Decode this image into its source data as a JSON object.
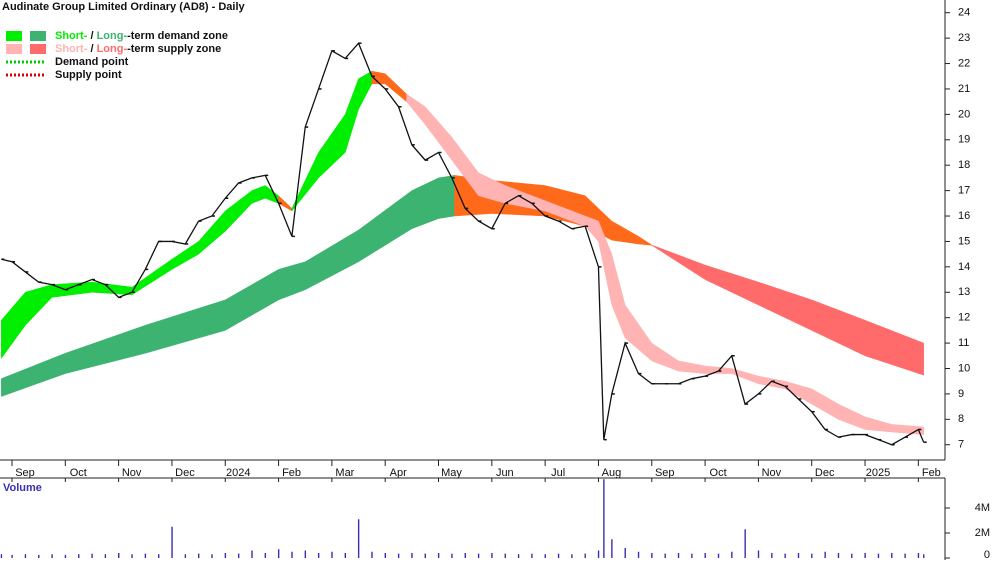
{
  "chart_data": {
    "type": "line",
    "title": "Audinate Group Limited Ordinary (AD8) - Daily",
    "legend": [
      {
        "parts": [
          "Short-",
          " / ",
          "Long-",
          "-term demand zone"
        ],
        "colors": [
          "#00ee00",
          "#3cb371"
        ]
      },
      {
        "parts": [
          "Short-",
          " / ",
          "Long-",
          "-term supply zone"
        ],
        "colors": [
          "#ffb3b3",
          "#ff6b6b"
        ]
      },
      {
        "label": "Demand point",
        "color": "#00cc00"
      },
      {
        "label": "Supply point",
        "color": "#dd0000"
      }
    ],
    "xlim": [
      0.775,
      18.5
    ],
    "xticks": [
      {
        "value": 1,
        "label": "Sep"
      },
      {
        "value": 2,
        "label": "Oct"
      },
      {
        "value": 3,
        "label": "Nov"
      },
      {
        "value": 4,
        "label": "Dec"
      },
      {
        "value": 5,
        "label": "2024"
      },
      {
        "value": 6,
        "label": "Feb"
      },
      {
        "value": 7,
        "label": "Mar"
      },
      {
        "value": 8,
        "label": "Apr"
      },
      {
        "value": 9,
        "label": "May"
      },
      {
        "value": 10,
        "label": "Jun"
      },
      {
        "value": 11,
        "label": "Jul"
      },
      {
        "value": 12,
        "label": "Aug"
      },
      {
        "value": 13,
        "label": "Sep"
      },
      {
        "value": 14,
        "label": "Oct"
      },
      {
        "value": 15,
        "label": "Nov"
      },
      {
        "value": 16,
        "label": "Dec"
      },
      {
        "value": 17,
        "label": "2025"
      },
      {
        "value": 18,
        "label": "Feb"
      }
    ],
    "ylim": [
      6.4,
      24.5
    ],
    "yticks": [
      7,
      8,
      9,
      10,
      11,
      12,
      13,
      14,
      15,
      16,
      17,
      18,
      19,
      20,
      21,
      22,
      23,
      24
    ],
    "x": [
      0.8,
      1.0,
      1.25,
      1.5,
      1.75,
      2.0,
      2.25,
      2.5,
      2.75,
      3.0,
      3.25,
      3.5,
      3.75,
      4.0,
      4.25,
      4.5,
      4.75,
      5.0,
      5.25,
      5.5,
      5.75,
      6.0,
      6.25,
      6.5,
      6.75,
      7.0,
      7.25,
      7.5,
      7.75,
      8.0,
      8.25,
      8.5,
      8.75,
      9.0,
      9.25,
      9.5,
      9.75,
      10.0,
      10.25,
      10.5,
      10.75,
      11.0,
      11.25,
      11.5,
      11.75,
      12.0,
      12.1,
      12.25,
      12.5,
      12.75,
      13.0,
      13.25,
      13.5,
      13.75,
      14.0,
      14.25,
      14.5,
      14.75,
      15.0,
      15.25,
      15.5,
      15.75,
      16.0,
      16.25,
      16.5,
      16.75,
      17.0,
      17.25,
      17.5,
      17.75,
      18.0,
      18.1
    ],
    "price": {
      "color": "#111111",
      "values": [
        14.3,
        14.2,
        13.8,
        13.4,
        13.3,
        13.1,
        13.3,
        13.5,
        13.3,
        12.8,
        13.0,
        13.9,
        15.0,
        15.0,
        14.9,
        15.8,
        16.0,
        16.7,
        17.3,
        17.5,
        17.6,
        16.5,
        15.2,
        19.5,
        21.0,
        22.5,
        22.2,
        22.8,
        21.5,
        21.0,
        20.3,
        18.8,
        18.2,
        18.5,
        17.5,
        16.3,
        15.8,
        15.5,
        16.5,
        16.8,
        16.5,
        16.0,
        15.8,
        15.5,
        15.6,
        14.0,
        7.2,
        9.0,
        11.0,
        9.8,
        9.4,
        9.4,
        9.4,
        9.6,
        9.7,
        9.9,
        10.5,
        8.6,
        9.0,
        9.5,
        9.3,
        8.8,
        8.3,
        7.6,
        7.3,
        7.4,
        7.4,
        7.2,
        7.0,
        7.3,
        7.6,
        7.1
      ]
    },
    "zones": [
      {
        "color": "#3cb371",
        "x": [
          0.8,
          2.0,
          3.5,
          5.0,
          6.0,
          6.5,
          7.5,
          8.5,
          9.0,
          9.3
        ],
        "upper": [
          9.6,
          10.6,
          11.7,
          12.7,
          13.9,
          14.2,
          15.45,
          17.0,
          17.5,
          17.6
        ],
        "lower": [
          8.9,
          9.8,
          10.6,
          11.5,
          12.7,
          13.1,
          14.2,
          15.5,
          15.9,
          16.0
        ]
      },
      {
        "color": "#ff6a1a",
        "x": [
          9.3,
          10.0,
          11.0,
          11.75,
          12.25,
          12.75,
          13.0
        ],
        "upper": [
          17.6,
          17.4,
          17.2,
          16.8,
          15.8,
          15.2,
          14.86
        ],
        "lower": [
          16.0,
          16.1,
          16.0,
          15.6,
          15.05,
          14.9,
          14.85
        ]
      },
      {
        "color": "#ff6b6b",
        "x": [
          13.0,
          14.0,
          15.0,
          16.0,
          17.0,
          18.1
        ],
        "upper": [
          14.86,
          14.07,
          13.4,
          12.7,
          11.9,
          11.0
        ],
        "lower": [
          14.85,
          13.5,
          12.5,
          11.5,
          10.5,
          9.74
        ]
      },
      {
        "color": "#00ee00",
        "x": [
          0.8,
          1.25,
          1.75,
          2.5,
          3.25,
          4.0,
          4.5,
          5.0,
          5.5,
          5.75,
          6.0
        ],
        "upper": [
          11.9,
          13.0,
          13.3,
          13.4,
          13.2,
          14.3,
          15.0,
          16.2,
          17.0,
          17.2,
          16.8
        ],
        "lower": [
          10.4,
          11.7,
          12.8,
          13.0,
          12.9,
          13.9,
          14.5,
          15.4,
          16.5,
          16.7,
          16.5
        ]
      },
      {
        "color": "#ff6a1a",
        "x": [
          6.0,
          6.25
        ],
        "upper": [
          16.8,
          16.3
        ],
        "lower": [
          16.5,
          16.2
        ]
      },
      {
        "color": "#00ee00",
        "x": [
          6.25,
          6.75,
          7.25,
          7.5,
          7.75
        ],
        "upper": [
          16.3,
          18.5,
          20.0,
          21.4,
          21.7
        ],
        "lower": [
          16.2,
          17.5,
          18.5,
          20.2,
          21.2
        ]
      },
      {
        "color": "#ff6a1a",
        "x": [
          7.75,
          8.0,
          8.4
        ],
        "upper": [
          21.7,
          21.6,
          20.8
        ],
        "lower": [
          21.2,
          21.2,
          20.5
        ]
      },
      {
        "color": "#ffb3b3",
        "x": [
          8.4,
          8.75,
          9.25,
          9.75,
          10.25,
          11.0,
          11.75,
          12.0,
          12.25,
          12.5,
          13.0,
          13.5,
          14.0,
          14.5,
          15.0,
          15.5,
          16.0,
          16.5,
          17.0,
          17.5,
          18.1
        ],
        "upper": [
          20.8,
          20.3,
          19.1,
          17.7,
          17.2,
          16.6,
          16.0,
          15.8,
          14.5,
          12.5,
          11.0,
          10.3,
          10.1,
          10.0,
          9.7,
          9.5,
          9.2,
          8.6,
          8.1,
          7.8,
          7.7
        ],
        "lower": [
          20.5,
          19.6,
          18.2,
          16.8,
          16.5,
          16.2,
          15.6,
          15.0,
          12.5,
          11.2,
          10.3,
          9.9,
          9.8,
          9.8,
          9.4,
          9.2,
          8.6,
          8.0,
          7.6,
          7.5,
          7.4
        ]
      }
    ],
    "volume": {
      "title": "Volume",
      "color": "#3a2fb0",
      "ylim": [
        0,
        6400000
      ],
      "yticks": [
        {
          "value": 0,
          "label": "0"
        },
        {
          "value": 2000000,
          "label": "2M"
        },
        {
          "value": 4000000,
          "label": "4M"
        }
      ],
      "values": [
        300000,
        250000,
        300000,
        250000,
        300000,
        250000,
        300000,
        350000,
        300000,
        400000,
        300000,
        350000,
        300000,
        2500000,
        300000,
        350000,
        300000,
        400000,
        350000,
        600000,
        400000,
        700000,
        500000,
        600000,
        400000,
        500000,
        400000,
        3100000,
        500000,
        400000,
        350000,
        400000,
        350000,
        400000,
        350000,
        400000,
        350000,
        400000,
        350000,
        300000,
        350000,
        300000,
        350000,
        300000,
        350000,
        600000,
        6300000,
        1500000,
        800000,
        500000,
        400000,
        350000,
        400000,
        350000,
        400000,
        350000,
        500000,
        2300000,
        600000,
        400000,
        350000,
        400000,
        350000,
        500000,
        400000,
        350000,
        400000,
        350000,
        400000,
        350000,
        400000,
        300000
      ]
    }
  }
}
